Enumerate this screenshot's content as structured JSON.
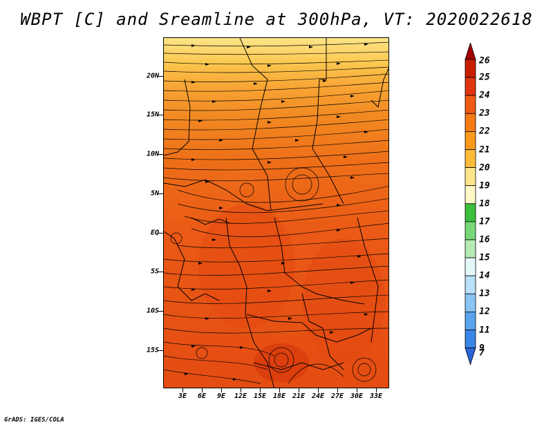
{
  "title": "WBPT [C] and Sreamline at 300hPa, VT: 2020022618",
  "credit": "GrADS: IGES/COLA",
  "map": {
    "lat_labels": [
      "20N",
      "15N",
      "10N",
      "5N",
      "EQ",
      "5S",
      "10S",
      "15S"
    ],
    "lon_labels": [
      "3E",
      "6E",
      "9E",
      "12E",
      "15E",
      "18E",
      "21E",
      "24E",
      "27E",
      "30E",
      "33E"
    ],
    "background_color": "#ea5a16"
  },
  "colorbar": {
    "labels": [
      "26",
      "25",
      "24",
      "23",
      "22",
      "21",
      "20",
      "19",
      "18",
      "17",
      "16",
      "15",
      "14",
      "13",
      "12",
      "11",
      "9",
      "7"
    ],
    "colors": [
      "#a50000",
      "#c81e00",
      "#e03410",
      "#f05a14",
      "#f57a14",
      "#fa9a1c",
      "#fcbc3a",
      "#fde58a",
      "#fff8c8",
      "#3cbf3c",
      "#78d878",
      "#b4ecb4",
      "#e4f8f8",
      "#b8e0f8",
      "#88c4f4",
      "#5aa4ee",
      "#3a86e8",
      "#2a66d8"
    ]
  }
}
